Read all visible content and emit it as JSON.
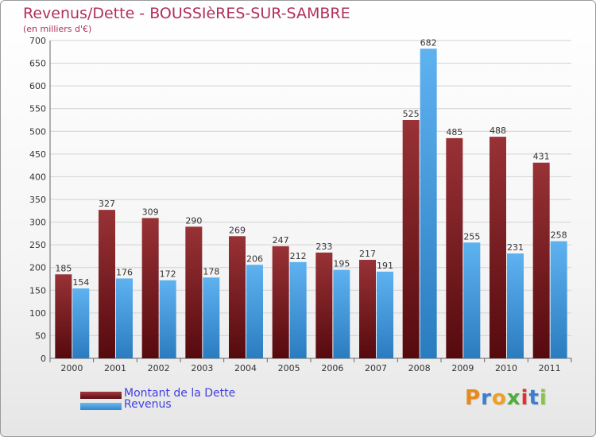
{
  "header": {
    "title": "Revenus/Dette - BOUSSIèRES-SUR-SAMBRE",
    "subtitle": "(en milliers d'€)"
  },
  "chart_data": {
    "type": "bar",
    "categories": [
      "2000",
      "2001",
      "2002",
      "2003",
      "2004",
      "2005",
      "2006",
      "2007",
      "2008",
      "2009",
      "2010",
      "2011"
    ],
    "series": [
      {
        "name": "Montant de la Dette",
        "values": [
          185,
          327,
          309,
          290,
          269,
          247,
          233,
          217,
          525,
          485,
          488,
          431
        ],
        "color": "#7a1a1f"
      },
      {
        "name": "Revenus",
        "values": [
          154,
          176,
          172,
          178,
          206,
          212,
          195,
          191,
          682,
          255,
          231,
          258
        ],
        "color": "#3d9ee6"
      }
    ],
    "ylim": [
      0,
      700
    ],
    "yticks": [
      0,
      50,
      100,
      150,
      200,
      250,
      300,
      350,
      400,
      450,
      500,
      550,
      600,
      650,
      700
    ],
    "grid": true,
    "legend_position": "bottom-left"
  },
  "legend": {
    "items": [
      {
        "label": "Montant de la Dette",
        "color": "#7a1a1f"
      },
      {
        "label": "Revenus",
        "color": "#3d9ee6"
      }
    ]
  },
  "logo": {
    "text": "Proxiti",
    "colors": [
      "#e8891c",
      "#3a7fd0",
      "#f0a020",
      "#4caf3a",
      "#e03030",
      "#3a7fd0",
      "#8bc34a"
    ]
  }
}
